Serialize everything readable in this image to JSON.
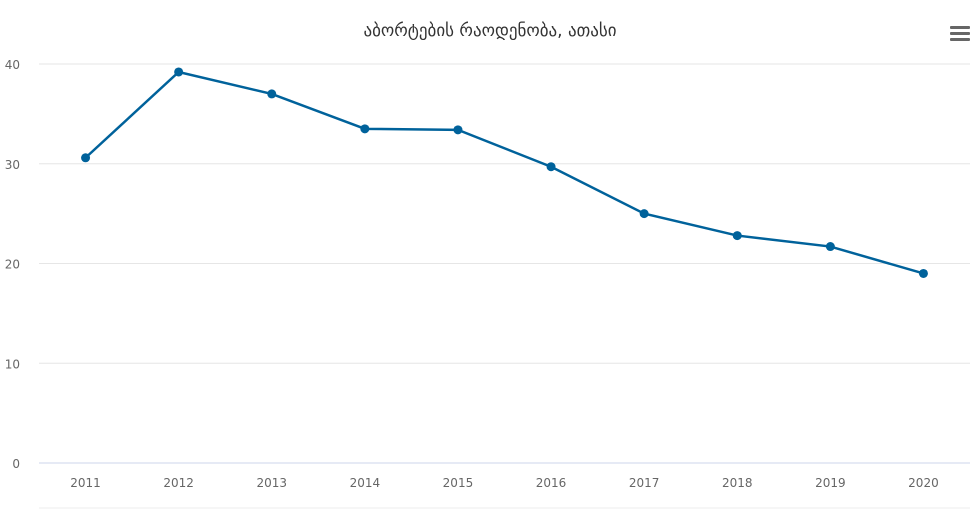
{
  "chart_data": {
    "type": "line",
    "title": "აბორტების რაოდენობა, ათასი",
    "xlabel": "",
    "ylabel": "",
    "categories": [
      "2011",
      "2012",
      "2013",
      "2014",
      "2015",
      "2016",
      "2017",
      "2018",
      "2019",
      "2020"
    ],
    "values": [
      30.6,
      39.2,
      37.0,
      33.5,
      33.4,
      29.7,
      25.0,
      22.8,
      21.7,
      19.0
    ],
    "ylim": [
      0,
      40
    ],
    "yticks": [
      "0",
      "10",
      "20",
      "30",
      "40"
    ],
    "grid": true,
    "legend": "none",
    "color": "#00629b"
  },
  "menu_icon": "hamburger-menu-icon"
}
